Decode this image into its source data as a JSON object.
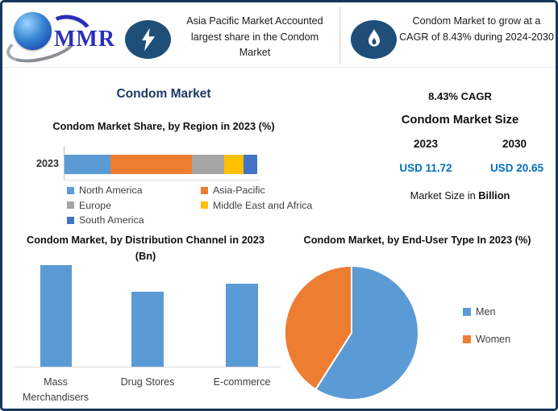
{
  "header": {
    "logo": {
      "text": "MMR"
    },
    "highlight_left": {
      "icon": "lightning",
      "text": "Asia Pacific Market Accounted largest share in the Condom Market"
    },
    "highlight_right": {
      "icon": "flame",
      "text": "Condom Market to grow at a CAGR of 8.43% during 2024-2030"
    }
  },
  "title": "Condom Market",
  "kpi": {
    "cagr": "8.43% CAGR",
    "market_size_title": "Condom Market Size",
    "year_start": "2023",
    "year_end": "2030",
    "value_start": "USD 11.72",
    "value_end": "USD 20.65",
    "unit_prefix": "Market Size in",
    "unit_bold": "Billion",
    "value_color": "#0070C0"
  },
  "colors": {
    "frame_border": "#16365D",
    "badge_circle": "#1F4E79",
    "main_title": "#1F3864"
  },
  "chart_data": [
    {
      "id": "region-share",
      "type": "bar",
      "variant": "stacked-horizontal",
      "title": "Condom Market Share, by Region in 2023 (%)",
      "categories": [
        "2023"
      ],
      "series": [
        {
          "name": "North America",
          "value": 24,
          "color": "#5B9BD5"
        },
        {
          "name": "Asia-Pacific",
          "value": 42,
          "color": "#ED7D31"
        },
        {
          "name": "Europe",
          "value": 17,
          "color": "#A5A5A5"
        },
        {
          "name": "Middle East and Africa",
          "value": 10,
          "color": "#FFC000"
        },
        {
          "name": "South America",
          "value": 7,
          "color": "#4472C4"
        }
      ],
      "legend_position": "bottom",
      "note": "percent values estimated from segment widths; no data labels shown"
    },
    {
      "id": "distribution-channel",
      "type": "bar",
      "title": "Condom Market, by Distribution Channel in 2023 (Bn)",
      "categories": [
        "Mass Merchandisers",
        "Drug Stores",
        "E-commerce"
      ],
      "values": [
        1.0,
        0.74,
        0.82
      ],
      "bar_color": "#5B9BD5",
      "value_axis_shown": false,
      "note": "relative heights; no value axis or data labels shown"
    },
    {
      "id": "end-user-type",
      "type": "pie",
      "title": "Condom Market, by End-User Type In 2023 (%)",
      "labels": [
        "Men",
        "Women"
      ],
      "values": [
        59,
        41
      ],
      "colors": [
        "#5B9BD5",
        "#ED7D31"
      ],
      "legend_position": "right",
      "start_angle_deg": 0,
      "note": "shares estimated from slice angles; no data labels shown"
    }
  ]
}
